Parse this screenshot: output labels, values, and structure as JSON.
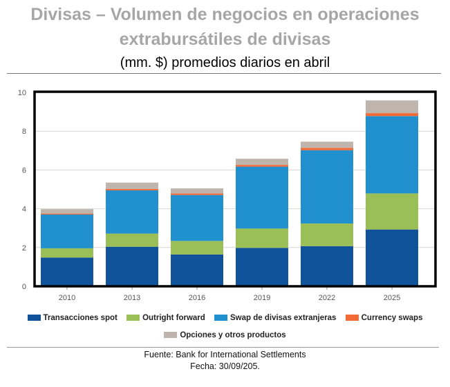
{
  "title": {
    "line1": "Divisas – Volumen de negocios en operaciones",
    "line2": "extrabursátiles de divisas"
  },
  "subtitle": "(mm. $) promedios diarios en abril",
  "footer": {
    "source": "Fuente: Bank for International Settlements",
    "date": "Fecha: 30/09/205."
  },
  "chart_data": {
    "type": "bar",
    "stacked": true,
    "title": "Divisas – Volumen de negocios en operaciones extrabursátiles de divisas",
    "subtitle": "(mm. $) promedios diarios en abril",
    "xlabel": "",
    "ylabel": "",
    "categories": [
      "2010",
      "2013",
      "2016",
      "2019",
      "2022",
      "2025"
    ],
    "ylim": [
      0,
      10
    ],
    "yticks": [
      "0",
      "2",
      "4",
      "6",
      "8",
      "10"
    ],
    "grid": true,
    "legend_position": "bottom",
    "series": [
      {
        "name": "Transacciones spot",
        "color": "#10539a",
        "values": [
          1.48,
          2.04,
          1.64,
          1.98,
          2.07,
          2.93
        ]
      },
      {
        "name": "Outright forward",
        "color": "#9bbf57",
        "values": [
          0.48,
          0.68,
          0.7,
          1.0,
          1.17,
          1.86
        ]
      },
      {
        "name": "Swap de divisas extranjeras",
        "color": "#2090cf",
        "values": [
          1.74,
          2.23,
          2.37,
          3.19,
          3.78,
          3.99
        ]
      },
      {
        "name": "Currency swaps",
        "color": "#f26a35",
        "values": [
          0.05,
          0.07,
          0.08,
          0.09,
          0.12,
          0.15
        ]
      },
      {
        "name": "Opciones y otros productos",
        "color": "#c0b5ac",
        "values": [
          0.23,
          0.33,
          0.26,
          0.32,
          0.32,
          0.66
        ]
      }
    ]
  }
}
